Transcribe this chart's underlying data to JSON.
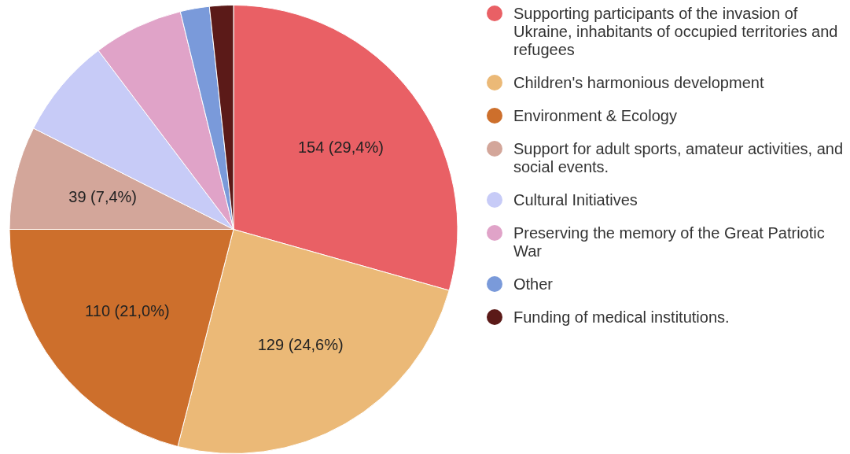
{
  "chart_data": {
    "type": "pie",
    "categories": [
      "Supporting participants of the invasion of Ukraine, inhabitants of occupied territories and refugees",
      "Children's harmonious development",
      "Environment & Ecology",
      "Support for adult sports, amateur activities, and social events.",
      "Cultural Initiatives",
      "Preserving the memory of the Great Patriotic War",
      "Other",
      "Funding of medical institutions."
    ],
    "values": [
      154,
      129,
      110,
      39,
      38,
      34,
      11,
      9
    ],
    "colors": [
      "#e96065",
      "#ebb977",
      "#cd6f2c",
      "#d3a69a",
      "#c7cbf7",
      "#e0a3c8",
      "#7a9ada",
      "#5b1a18"
    ],
    "value_labels": [
      "154 (29,4%)",
      "129 (24,6%)",
      "110 (21,0%)",
      "39 (7,4%)",
      null,
      null,
      null,
      null
    ],
    "legend": "right"
  }
}
